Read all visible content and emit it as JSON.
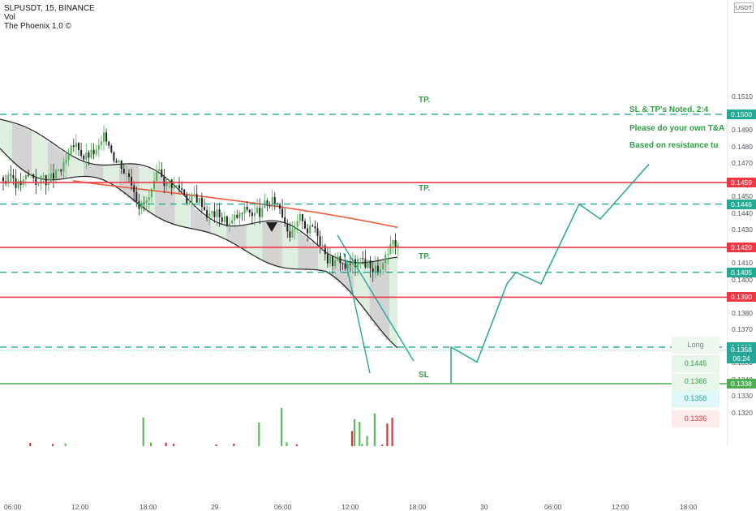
{
  "legend": {
    "symbol": "SLPUSDT, 15, BINANCE",
    "volume": "Vol",
    "indicator": "The Phoenix 1.0 ©"
  },
  "currency": "USDT",
  "annotations": {
    "tp1": "TP.",
    "tp2": "TP.",
    "tp3": "TP.",
    "sl": "SL",
    "note1": "SL & TP's Noted. 2:4",
    "note2": "Please do your own T&A",
    "note3": "Based on resistance turni"
  },
  "price_axis": {
    "ticks": [
      "0.1510",
      "0.1490",
      "0.1480",
      "0.1470",
      "0.1450",
      "0.1440",
      "0.1430",
      "0.1410",
      "0.1400",
      "0.1380",
      "0.1370",
      "0.1350",
      "0.1340",
      "0.1330",
      "0.1320"
    ]
  },
  "price_levels": [
    {
      "label": "0.1500",
      "price": 0.15,
      "style": "dashed",
      "color": "#22ab94"
    },
    {
      "label": "0.1459",
      "price": 0.1459,
      "style": "solid",
      "color": "#f23645"
    },
    {
      "label": "0.1446",
      "price": 0.1446,
      "style": "dashed",
      "color": "#22ab94"
    },
    {
      "label": "0.1420",
      "price": 0.142,
      "style": "solid",
      "color": "#f23645"
    },
    {
      "label": "0.1405",
      "price": 0.1405,
      "style": "dashed",
      "color": "#22ab94"
    },
    {
      "label": "0.1390",
      "price": 0.139,
      "style": "solid",
      "color": "#f23645"
    },
    {
      "label": "0.1360",
      "price": 0.136,
      "style": "dashed",
      "color": "#22ab94"
    },
    {
      "label": "0.1338",
      "price": 0.1338,
      "style": "solid",
      "color": "#4caf50"
    }
  ],
  "last_price": {
    "value": "0.1358",
    "countdown": "06:24",
    "color": "#26a69a"
  },
  "position_tool": {
    "side": "Long",
    "values": [
      {
        "label": "0.1445",
        "bg": "#e8f5e9",
        "fg": "#2ea043"
      },
      {
        "label": "0.1366",
        "bg": "#e8f5e9",
        "fg": "#2ea043"
      },
      {
        "label": "0.1358",
        "bg": "#e0f7fa",
        "fg": "#26a69a"
      },
      {
        "label": "0.1336",
        "bg": "#fdecea",
        "fg": "#f23645"
      }
    ]
  },
  "time_axis": [
    "06:00",
    "12:00",
    "18:00",
    "29",
    "06:00",
    "12:00",
    "18:00",
    "30",
    "06:00",
    "12:00",
    "18:00"
  ],
  "chart_data": {
    "type": "line",
    "title": "SLPUSDT, 15, BINANCE",
    "ylim": [
      0.1316,
      0.1514
    ],
    "projection_path": [
      {
        "t": "16:00",
        "price": 0.1338
      },
      {
        "t": "16:00",
        "price": 0.136
      },
      {
        "t": "19:00",
        "price": 0.1351
      },
      {
        "t": "21:30",
        "price": 0.1398
      },
      {
        "t": "23:30",
        "price": 0.1405
      },
      {
        "t": "01:30",
        "price": 0.1398
      },
      {
        "t": "03:45",
        "price": 0.1446
      },
      {
        "t": "05:45",
        "price": 0.1437
      },
      {
        "t": "09:30",
        "price": 0.147
      }
    ],
    "moving_average": {
      "name": "MA",
      "color": "#ef5a3c",
      "start": 0.146,
      "end": 0.1432
    }
  }
}
